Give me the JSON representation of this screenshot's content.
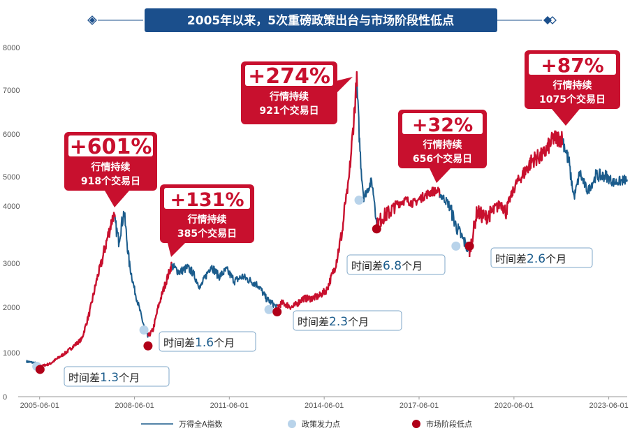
{
  "chart_data": {
    "type": "line",
    "title": "2005年以来，5次重磅政策出台与市场阶段性低点",
    "x_ticks": [
      "2005-06-01",
      "2008-06-01",
      "2011-06-01",
      "2014-06-01",
      "2017-06-01",
      "2020-06-01",
      "2023-06-01"
    ],
    "y_ticks": [
      0,
      1000,
      2000,
      3000,
      4000,
      5000,
      6000,
      7000,
      8000
    ],
    "ylim": [
      0,
      8000
    ],
    "xlim": [
      "2005-01-01",
      "2023-12-31"
    ],
    "series": [
      {
        "name": "万得全A指数",
        "color_up": "#c8102e",
        "color_down": "#1b5c8c",
        "points": [
          [
            "2005-01-01",
            800
          ],
          [
            "2005-04-01",
            770
          ],
          [
            "2005-07-01",
            700
          ],
          [
            "2005-10-01",
            750
          ],
          [
            "2006-01-01",
            880
          ],
          [
            "2006-04-01",
            1000
          ],
          [
            "2006-07-01",
            1150
          ],
          [
            "2006-10-01",
            1300
          ],
          [
            "2007-01-01",
            1900
          ],
          [
            "2007-04-01",
            2700
          ],
          [
            "2007-07-01",
            3300
          ],
          [
            "2007-10-01",
            3850
          ],
          [
            "2007-12-01",
            3400
          ],
          [
            "2008-02-01",
            3900
          ],
          [
            "2008-04-01",
            3000
          ],
          [
            "2008-06-01",
            2400
          ],
          [
            "2008-09-01",
            1700
          ],
          [
            "2008-11-01",
            1350
          ],
          [
            "2009-01-01",
            1500
          ],
          [
            "2009-03-01",
            2000
          ],
          [
            "2009-05-01",
            2400
          ],
          [
            "2009-08-01",
            2950
          ],
          [
            "2009-11-01",
            2800
          ],
          [
            "2010-02-01",
            2900
          ],
          [
            "2010-04-01",
            2800
          ],
          [
            "2010-07-01",
            2450
          ],
          [
            "2010-11-01",
            2950
          ],
          [
            "2011-02-01",
            2700
          ],
          [
            "2011-05-01",
            2850
          ],
          [
            "2011-08-01",
            2600
          ],
          [
            "2011-11-01",
            2700
          ],
          [
            "2012-02-01",
            2600
          ],
          [
            "2012-05-01",
            2500
          ],
          [
            "2012-08-01",
            2200
          ],
          [
            "2012-12-01",
            2000
          ],
          [
            "2013-02-01",
            2100
          ],
          [
            "2013-06-01",
            2000
          ],
          [
            "2013-10-01",
            2200
          ],
          [
            "2014-01-01",
            2200
          ],
          [
            "2014-04-01",
            2250
          ],
          [
            "2014-07-01",
            2400
          ],
          [
            "2014-10-01",
            2900
          ],
          [
            "2015-01-01",
            3600
          ],
          [
            "2015-03-01",
            4600
          ],
          [
            "2015-06-12",
            7200
          ],
          [
            "2015-07-15",
            5800
          ],
          [
            "2015-09-01",
            4300
          ],
          [
            "2015-12-01",
            4850
          ],
          [
            "2016-01-28",
            3650
          ],
          [
            "2016-04-01",
            3800
          ],
          [
            "2016-07-01",
            3900
          ],
          [
            "2016-10-01",
            4100
          ],
          [
            "2017-01-01",
            4200
          ],
          [
            "2017-04-01",
            4100
          ],
          [
            "2017-08-01",
            4350
          ],
          [
            "2017-11-01",
            4500
          ],
          [
            "2018-01-01",
            4500
          ],
          [
            "2018-05-01",
            4100
          ],
          [
            "2018-08-01",
            3650
          ],
          [
            "2018-12-01",
            3300
          ],
          [
            "2019-01-04",
            3200
          ],
          [
            "2019-04-01",
            3900
          ],
          [
            "2019-07-01",
            3800
          ],
          [
            "2019-10-01",
            3900
          ],
          [
            "2020-01-01",
            4100
          ],
          [
            "2020-03-01",
            3900
          ],
          [
            "2020-07-01",
            4800
          ],
          [
            "2020-10-01",
            5100
          ],
          [
            "2021-01-01",
            5400
          ],
          [
            "2021-05-01",
            5500
          ],
          [
            "2021-09-01",
            5900
          ],
          [
            "2021-12-15",
            5900
          ],
          [
            "2022-03-01",
            5300
          ],
          [
            "2022-04-27",
            4300
          ],
          [
            "2022-07-01",
            5100
          ],
          [
            "2022-10-01",
            4500
          ],
          [
            "2023-01-01",
            5000
          ],
          [
            "2023-05-01",
            5000
          ],
          [
            "2023-08-01",
            4800
          ],
          [
            "2023-12-31",
            4900
          ]
        ]
      }
    ],
    "policy_points": [
      [
        "2005-04-29",
        690
      ],
      [
        "2008-09-18",
        1500
      ],
      [
        "2012-09-01",
        1950
      ],
      [
        "2015-07-08",
        4200
      ],
      [
        "2018-08-01",
        3300
      ]
    ],
    "low_points": [
      [
        "2005-06-06",
        620
      ],
      [
        "2008-11-04",
        1150
      ],
      [
        "2012-12-04",
        1900
      ],
      [
        "2016-01-28",
        3600
      ],
      [
        "2019-01-04",
        3300
      ]
    ],
    "gains": [
      {
        "pct": "+601%",
        "line1": "行情持续",
        "line2": "918个交易日"
      },
      {
        "pct": "+131%",
        "line1": "行情持续",
        "line2": "385个交易日"
      },
      {
        "pct": "+274%",
        "line1": "行情持续",
        "line2": "921个交易日"
      },
      {
        "pct": "+32%",
        "line1": "行情持续",
        "line2": "656个交易日"
      },
      {
        "pct": "+87%",
        "line1": "行情持续",
        "line2": "1075个交易日"
      }
    ],
    "gaps": [
      {
        "prefix": "时间差",
        "num": "1.3",
        "suffix": "个月"
      },
      {
        "prefix": "时间差",
        "num": "1.6",
        "suffix": "个月"
      },
      {
        "prefix": "时间差",
        "num": "2.3",
        "suffix": "个月"
      },
      {
        "prefix": "时间差",
        "num": "6.8",
        "suffix": "个月"
      },
      {
        "prefix": "时间差",
        "num": "2.6",
        "suffix": "个月"
      }
    ],
    "legend": [
      {
        "label": "万得全A指数",
        "kind": "line"
      },
      {
        "label": "政策发力点",
        "kind": "policy"
      },
      {
        "label": "市场阶段低点",
        "kind": "low"
      }
    ]
  },
  "colors": {
    "up": "#c8102e",
    "down": "#1b5c8c",
    "policy": "#b8d3ea",
    "low": "#b00018",
    "title_bg": "#1b4f8c"
  }
}
